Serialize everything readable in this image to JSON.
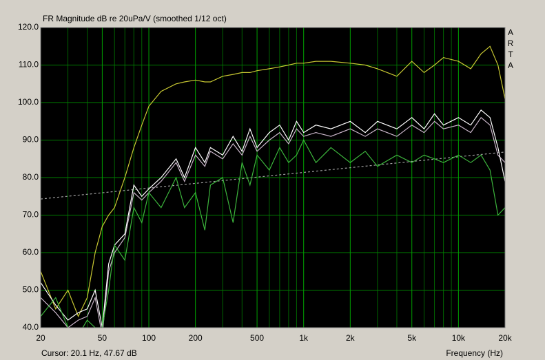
{
  "chart_data": {
    "type": "line",
    "title": "FR Magnitude dB re 20uPa/V (smoothed 1/12 oct)",
    "side_label": [
      "A",
      "R",
      "T",
      "A"
    ],
    "cursor_readout": "Cursor: 20.1 Hz, 47.67 dB",
    "x_label": "Frequency (Hz)",
    "xscale": "log",
    "grid": true,
    "xlim": [
      20,
      20000
    ],
    "ylim": [
      40,
      120
    ],
    "xticks": [
      20,
      50,
      100,
      200,
      500,
      {
        "value": 1000,
        "label": "1k"
      },
      {
        "value": 2000,
        "label": "2k"
      },
      {
        "value": 5000,
        "label": "5k"
      },
      {
        "value": 10000,
        "label": "10k"
      },
      {
        "value": 20000,
        "label": "20k"
      }
    ],
    "x_minor_grid": [
      30,
      40,
      60,
      70,
      80,
      90,
      300,
      400,
      600,
      700,
      800,
      900,
      3000,
      4000,
      6000,
      7000,
      8000,
      9000
    ],
    "yticks": [
      {
        "value": 40,
        "label": "40.0"
      },
      {
        "value": 50,
        "label": "50.0"
      },
      {
        "value": 60,
        "label": "60.0"
      },
      {
        "value": 70,
        "label": "70.0"
      },
      {
        "value": 80,
        "label": "80.0"
      },
      {
        "value": 90,
        "label": "90.0"
      },
      {
        "value": 100,
        "label": "100.0"
      },
      {
        "value": 110,
        "label": "110.0"
      },
      {
        "value": 120,
        "label": "120.0"
      }
    ],
    "x": [
      20,
      25,
      30,
      35,
      40,
      45,
      50,
      55,
      60,
      70,
      80,
      90,
      100,
      120,
      150,
      170,
      200,
      230,
      250,
      300,
      350,
      400,
      450,
      500,
      600,
      700,
      800,
      900,
      1000,
      1200,
      1500,
      2000,
      2500,
      3000,
      4000,
      5000,
      6000,
      7000,
      8000,
      10000,
      12000,
      14000,
      16000,
      18000,
      20000
    ],
    "series": [
      {
        "color": "#c8c832",
        "values": [
          55,
          45,
          50,
          43,
          48,
          60,
          67,
          70,
          72,
          80,
          88,
          94,
          99,
          103,
          105,
          105.5,
          106,
          105.5,
          105.5,
          107,
          107.5,
          108,
          108,
          108.5,
          109,
          109.5,
          110,
          110.5,
          110.5,
          111,
          111,
          110.5,
          110,
          109,
          107,
          111,
          108,
          110,
          112,
          111,
          109,
          113,
          115,
          110,
          101
        ]
      },
      {
        "color": "#c8b4c8",
        "values": [
          48,
          44,
          40,
          42,
          43,
          48,
          38,
          55,
          60,
          64,
          76,
          74,
          76,
          79,
          84,
          79,
          86,
          83,
          87,
          85,
          89,
          86,
          91,
          87,
          90,
          92,
          89,
          93,
          91,
          92,
          91,
          93,
          91,
          93,
          91,
          94,
          92,
          95,
          93,
          94,
          92,
          96,
          94,
          86,
          84
        ]
      },
      {
        "color": "#ffffff",
        "values": [
          52,
          46,
          42,
          44,
          45,
          50,
          40,
          57,
          62,
          65,
          78,
          75,
          77,
          80,
          85,
          80,
          88,
          84,
          88,
          86,
          91,
          87,
          93,
          88,
          92,
          94,
          90,
          95,
          92,
          94,
          93,
          95,
          92,
          95,
          93,
          96,
          93,
          97,
          94,
          96,
          94,
          98,
          96,
          88,
          79
        ]
      },
      {
        "color": "#3cb43c",
        "values": [
          43,
          48,
          40,
          38,
          42,
          40,
          40,
          50,
          62,
          58,
          72,
          68,
          76,
          72,
          80,
          72,
          76,
          66,
          78,
          80,
          68,
          84,
          78,
          86,
          82,
          88,
          84,
          86,
          90,
          84,
          88,
          84,
          87,
          83,
          86,
          84,
          86,
          85,
          84,
          86,
          84,
          86,
          82,
          70,
          72
        ]
      }
    ],
    "reference_line": {
      "x": [
        20,
        20000
      ],
      "values": [
        74.3,
        86.8
      ],
      "color": "#a0a0a0"
    }
  }
}
